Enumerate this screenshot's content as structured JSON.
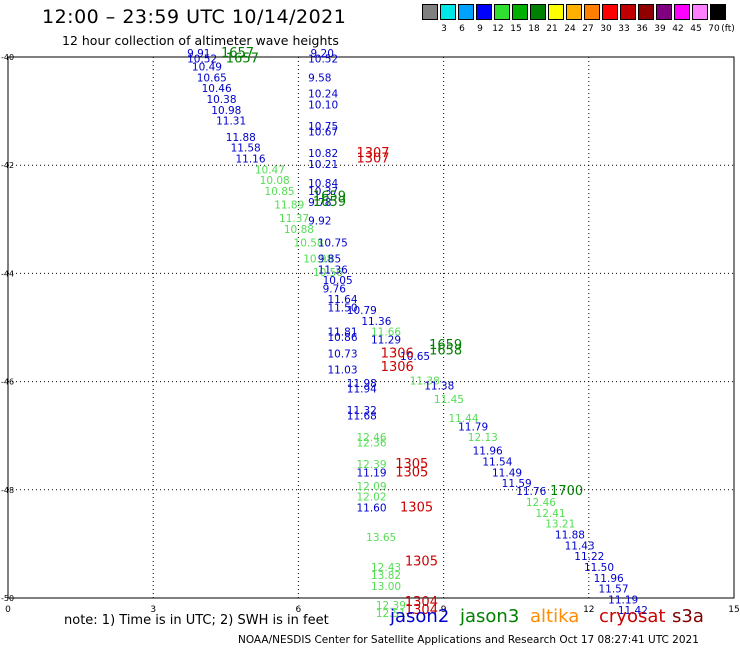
{
  "header": {
    "title": "12:00 – 23:59 UTC 10/14/2021",
    "subtitle": "12 hour collection of altimeter wave heights"
  },
  "legend": {
    "unit_label": "(ft)",
    "colors": [
      "#808080",
      "#00e5e5",
      "#00a0ff",
      "#0000ff",
      "#30e030",
      "#00b000",
      "#008000",
      "#ffff00",
      "#ffb000",
      "#ff8000",
      "#ff0000",
      "#c00000",
      "#900000",
      "#800080",
      "#ff00ff",
      "#ff80ff",
      "#000000"
    ],
    "labels": [
      "3",
      "6",
      "9",
      "12",
      "15",
      "18",
      "21",
      "24",
      "27",
      "30",
      "33",
      "36",
      "39",
      "42",
      "45",
      "70"
    ]
  },
  "note": "note:  1) Time is in UTC; 2) SWH is in feet",
  "satellites": [
    {
      "name": "jason2",
      "color": "#0000cc"
    },
    {
      "name": "jason3",
      "color": "#008000"
    },
    {
      "name": "altika",
      "color": "#ff8c00"
    },
    {
      "name": "cryosat",
      "color": "#cc0000"
    },
    {
      "name": "s3a",
      "color": "#800000"
    }
  ],
  "footer": "NOAA/NESDIS Center for Satellite Applications and Research   Oct 17 08:27:41 UTC 2021",
  "chart_data": {
    "type": "scatter",
    "x_ticks": [
      "0",
      "3",
      "6",
      "9",
      "12",
      "15"
    ],
    "y_ticks": [
      "-40",
      "-42",
      "-44",
      "-46",
      "-48",
      "-50"
    ],
    "xlim": [
      0,
      15
    ],
    "ylim": [
      -50,
      -40
    ],
    "grid": true,
    "points": [
      {
        "x": 3.7,
        "y": -40.0,
        "text": "9.91",
        "color": "#0000cc"
      },
      {
        "x": 3.7,
        "y": -40.1,
        "text": "10.52",
        "color": "#0000cc"
      },
      {
        "x": 3.8,
        "y": -40.25,
        "text": "10.49",
        "color": "#0000cc"
      },
      {
        "x": 3.9,
        "y": -40.45,
        "text": "10.65",
        "color": "#0000cc"
      },
      {
        "x": 4.0,
        "y": -40.65,
        "text": "10.46",
        "color": "#0000cc"
      },
      {
        "x": 4.1,
        "y": -40.85,
        "text": "10.38",
        "color": "#0000cc"
      },
      {
        "x": 4.2,
        "y": -41.05,
        "text": "10.98",
        "color": "#0000cc"
      },
      {
        "x": 4.3,
        "y": -41.25,
        "text": "11.31",
        "color": "#0000cc"
      },
      {
        "x": 4.5,
        "y": -41.55,
        "text": "11.88",
        "color": "#0000cc"
      },
      {
        "x": 4.6,
        "y": -41.75,
        "text": "11.58",
        "color": "#0000cc"
      },
      {
        "x": 4.7,
        "y": -41.95,
        "text": "11.16",
        "color": "#0000cc"
      },
      {
        "x": 5.1,
        "y": -42.15,
        "text": "10.47",
        "color": "#55dd55"
      },
      {
        "x": 5.2,
        "y": -42.35,
        "text": "10.08",
        "color": "#55dd55"
      },
      {
        "x": 5.3,
        "y": -42.55,
        "text": "10.85",
        "color": "#55dd55"
      },
      {
        "x": 5.5,
        "y": -42.8,
        "text": "11.89",
        "color": "#55dd55"
      },
      {
        "x": 5.6,
        "y": -43.05,
        "text": "11.37",
        "color": "#55dd55"
      },
      {
        "x": 5.7,
        "y": -43.25,
        "text": "10.88",
        "color": "#55dd55"
      },
      {
        "x": 5.9,
        "y": -43.5,
        "text": "10.58",
        "color": "#55dd55"
      },
      {
        "x": 6.1,
        "y": -43.8,
        "text": "10.98",
        "color": "#55dd55"
      },
      {
        "x": 6.3,
        "y": -44.05,
        "text": "10.56",
        "color": "#55dd55"
      },
      {
        "x": 6.25,
        "y": -40.0,
        "text": "9.20",
        "color": "#0000cc"
      },
      {
        "x": 6.2,
        "y": -40.1,
        "text": "10.52",
        "color": "#0000cc"
      },
      {
        "x": 6.2,
        "y": -40.45,
        "text": "9.58",
        "color": "#0000cc"
      },
      {
        "x": 6.2,
        "y": -40.75,
        "text": "10.24",
        "color": "#0000cc"
      },
      {
        "x": 6.2,
        "y": -40.95,
        "text": "10.10",
        "color": "#0000cc"
      },
      {
        "x": 6.2,
        "y": -41.35,
        "text": "10.75",
        "color": "#0000cc"
      },
      {
        "x": 6.2,
        "y": -41.45,
        "text": "10.67",
        "color": "#0000cc"
      },
      {
        "x": 6.2,
        "y": -41.85,
        "text": "10.82",
        "color": "#0000cc"
      },
      {
        "x": 6.2,
        "y": -42.05,
        "text": "10.21",
        "color": "#0000cc"
      },
      {
        "x": 6.2,
        "y": -42.4,
        "text": "10.84",
        "color": "#0000cc"
      },
      {
        "x": 6.2,
        "y": -42.55,
        "text": "10.37",
        "color": "#0000cc"
      },
      {
        "x": 6.2,
        "y": -42.75,
        "text": "9.78",
        "color": "#0000cc"
      },
      {
        "x": 6.2,
        "y": -43.1,
        "text": "9.92",
        "color": "#0000cc"
      },
      {
        "x": 6.4,
        "y": -43.5,
        "text": "10.75",
        "color": "#0000cc"
      },
      {
        "x": 6.4,
        "y": -43.8,
        "text": "9.85",
        "color": "#0000cc"
      },
      {
        "x": 6.4,
        "y": -44.0,
        "text": "11.36",
        "color": "#0000cc"
      },
      {
        "x": 6.5,
        "y": -44.2,
        "text": "10.05",
        "color": "#0000cc"
      },
      {
        "x": 6.5,
        "y": -44.35,
        "text": "9.76",
        "color": "#0000cc"
      },
      {
        "x": 6.6,
        "y": -44.55,
        "text": "11.64",
        "color": "#0000cc"
      },
      {
        "x": 6.6,
        "y": -44.7,
        "text": "11.50",
        "color": "#0000cc"
      },
      {
        "x": 7.0,
        "y": -44.75,
        "text": "10.79",
        "color": "#0000cc"
      },
      {
        "x": 7.3,
        "y": -44.95,
        "text": "11.36",
        "color": "#0000cc"
      },
      {
        "x": 6.6,
        "y": -45.15,
        "text": "11.81",
        "color": "#0000cc"
      },
      {
        "x": 6.6,
        "y": -45.25,
        "text": "10.86",
        "color": "#0000cc"
      },
      {
        "x": 7.5,
        "y": -45.3,
        "text": "11.29",
        "color": "#0000cc"
      },
      {
        "x": 6.6,
        "y": -45.55,
        "text": "10.73",
        "color": "#0000cc"
      },
      {
        "x": 6.6,
        "y": -45.85,
        "text": "11.03",
        "color": "#0000cc"
      },
      {
        "x": 7.5,
        "y": -45.15,
        "text": "11.66",
        "color": "#55dd55"
      },
      {
        "x": 8.1,
        "y": -45.6,
        "text": "10.65",
        "color": "#0000cc"
      },
      {
        "x": 8.3,
        "y": -46.05,
        "text": "11.38",
        "color": "#55dd55"
      },
      {
        "x": 8.6,
        "y": -46.15,
        "text": "11.38",
        "color": "#0000cc"
      },
      {
        "x": 8.8,
        "y": -46.4,
        "text": "11.45",
        "color": "#55dd55"
      },
      {
        "x": 9.1,
        "y": -46.75,
        "text": "11.44",
        "color": "#55dd55"
      },
      {
        "x": 9.5,
        "y": -47.1,
        "text": "12.13",
        "color": "#55dd55"
      },
      {
        "x": 9.3,
        "y": -46.9,
        "text": "11.79",
        "color": "#0000cc"
      },
      {
        "x": 9.6,
        "y": -47.35,
        "text": "11.96",
        "color": "#0000cc"
      },
      {
        "x": 9.8,
        "y": -47.55,
        "text": "11.54",
        "color": "#0000cc"
      },
      {
        "x": 10.0,
        "y": -47.75,
        "text": "11.49",
        "color": "#0000cc"
      },
      {
        "x": 10.2,
        "y": -47.95,
        "text": "11.59",
        "color": "#0000cc"
      },
      {
        "x": 10.5,
        "y": -48.1,
        "text": "11.76",
        "color": "#0000cc"
      },
      {
        "x": 10.7,
        "y": -48.3,
        "text": "12.46",
        "color": "#55dd55"
      },
      {
        "x": 10.9,
        "y": -48.5,
        "text": "12.41",
        "color": "#55dd55"
      },
      {
        "x": 11.1,
        "y": -48.7,
        "text": "13.21",
        "color": "#55dd55"
      },
      {
        "x": 11.3,
        "y": -48.9,
        "text": "11.88",
        "color": "#0000cc"
      },
      {
        "x": 11.5,
        "y": -49.1,
        "text": "11.43",
        "color": "#0000cc"
      },
      {
        "x": 11.7,
        "y": -49.3,
        "text": "11.22",
        "color": "#0000cc"
      },
      {
        "x": 11.9,
        "y": -49.5,
        "text": "11.50",
        "color": "#0000cc"
      },
      {
        "x": 12.1,
        "y": -49.7,
        "text": "11.96",
        "color": "#0000cc"
      },
      {
        "x": 12.2,
        "y": -49.9,
        "text": "11.57",
        "color": "#0000cc"
      },
      {
        "x": 12.4,
        "y": -50.1,
        "text": "11.19",
        "color": "#0000cc"
      },
      {
        "x": 12.6,
        "y": -50.3,
        "text": "11.42",
        "color": "#0000cc"
      },
      {
        "x": 7.0,
        "y": -46.1,
        "text": "11.98",
        "color": "#0000cc"
      },
      {
        "x": 7.0,
        "y": -46.2,
        "text": "11.94",
        "color": "#0000cc"
      },
      {
        "x": 7.0,
        "y": -46.6,
        "text": "11.32",
        "color": "#0000cc"
      },
      {
        "x": 7.0,
        "y": -46.7,
        "text": "11.68",
        "color": "#0000cc"
      },
      {
        "x": 7.2,
        "y": -47.1,
        "text": "12.46",
        "color": "#55dd55"
      },
      {
        "x": 7.2,
        "y": -47.2,
        "text": "12.36",
        "color": "#55dd55"
      },
      {
        "x": 7.2,
        "y": -47.6,
        "text": "12.39",
        "color": "#55dd55"
      },
      {
        "x": 7.2,
        "y": -47.75,
        "text": "11.19",
        "color": "#0000cc"
      },
      {
        "x": 7.2,
        "y": -48.0,
        "text": "12.09",
        "color": "#55dd55"
      },
      {
        "x": 7.2,
        "y": -48.2,
        "text": "12.02",
        "color": "#55dd55"
      },
      {
        "x": 7.2,
        "y": -48.4,
        "text": "11.60",
        "color": "#0000cc"
      },
      {
        "x": 7.4,
        "y": -48.95,
        "text": "13.65",
        "color": "#55dd55"
      },
      {
        "x": 7.5,
        "y": -49.5,
        "text": "12.43",
        "color": "#55dd55"
      },
      {
        "x": 7.5,
        "y": -49.65,
        "text": "13.82",
        "color": "#55dd55"
      },
      {
        "x": 7.5,
        "y": -49.85,
        "text": "13.00",
        "color": "#55dd55"
      },
      {
        "x": 7.6,
        "y": -50.2,
        "text": "12.39",
        "color": "#55dd55"
      },
      {
        "x": 7.6,
        "y": -50.35,
        "text": "12.51",
        "color": "#55dd55"
      },
      {
        "x": 4.4,
        "y": -40.0,
        "text": "1657",
        "color": "#008000",
        "big": true
      },
      {
        "x": 4.5,
        "y": -40.1,
        "text": "1657",
        "color": "#008000",
        "big": true
      },
      {
        "x": 7.2,
        "y": -41.85,
        "text": "1307",
        "color": "#cc0000",
        "big": true
      },
      {
        "x": 7.2,
        "y": -41.95,
        "text": "1307",
        "color": "#cc0000",
        "big": true
      },
      {
        "x": 6.3,
        "y": -42.65,
        "text": "1659",
        "color": "#008000",
        "big": true
      },
      {
        "x": 6.3,
        "y": -42.75,
        "text": "1659",
        "color": "#008000",
        "big": true
      },
      {
        "x": 8.7,
        "y": -45.4,
        "text": "1659",
        "color": "#008000",
        "big": true
      },
      {
        "x": 8.7,
        "y": -45.5,
        "text": "1658",
        "color": "#008000",
        "big": true
      },
      {
        "x": 7.7,
        "y": -45.55,
        "text": "1306",
        "color": "#cc0000",
        "big": true
      },
      {
        "x": 7.7,
        "y": -45.8,
        "text": "1306",
        "color": "#cc0000",
        "big": true
      },
      {
        "x": 8.0,
        "y": -47.6,
        "text": "1305",
        "color": "#cc0000",
        "big": true
      },
      {
        "x": 8.0,
        "y": -47.75,
        "text": "1305",
        "color": "#cc0000",
        "big": true
      },
      {
        "x": 8.1,
        "y": -48.4,
        "text": "1305",
        "color": "#cc0000",
        "big": true
      },
      {
        "x": 8.2,
        "y": -49.4,
        "text": "1305",
        "color": "#cc0000",
        "big": true
      },
      {
        "x": 8.2,
        "y": -50.15,
        "text": "1304",
        "color": "#cc0000",
        "big": true
      },
      {
        "x": 8.2,
        "y": -50.3,
        "text": "1304",
        "color": "#cc0000",
        "big": true
      },
      {
        "x": 11.2,
        "y": -48.1,
        "text": "1700",
        "color": "#008000",
        "big": true
      }
    ]
  }
}
